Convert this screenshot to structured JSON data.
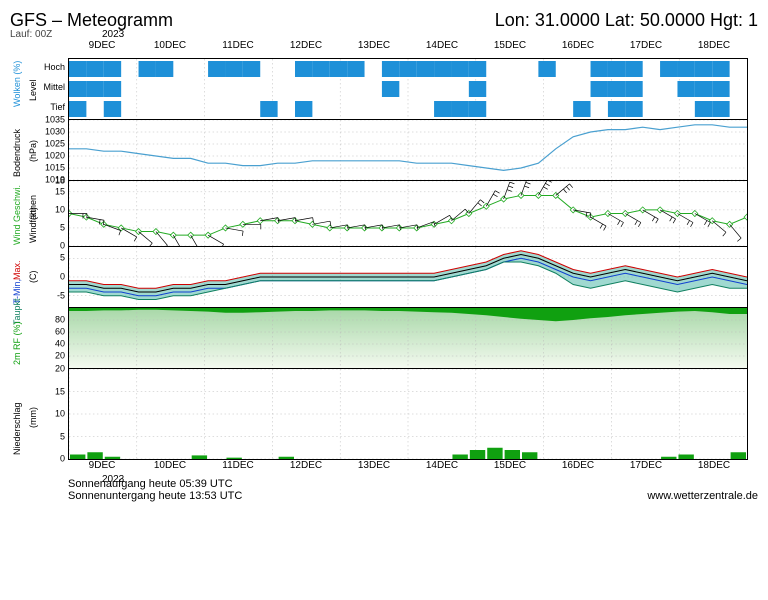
{
  "header": {
    "title": "GFS – Meteogramm",
    "loc": "Lon: 31.0000 Lat: 50.0000 Hgt: 1",
    "run": "Lauf: 00Z"
  },
  "time": {
    "year_top": "2023",
    "labels": [
      "9DEC",
      "10DEC",
      "11DEC",
      "12DEC",
      "13DEC",
      "14DEC",
      "15DEC",
      "16DEC",
      "17DEC",
      "18DEC"
    ],
    "bottom_year": "2023",
    "n_steps": 40
  },
  "colors": {
    "cloud": "#1e90d8",
    "pressure": "#4aa0d0",
    "wind": "#22aa22",
    "tmax": "#d00000",
    "tmin": "#1040d0",
    "dew": "#108060",
    "rh_fill": "#10a010",
    "rh_grad_top": "#50b050",
    "rh_grad_bot": "#e8f4e0",
    "precip": "#10a010",
    "panel_border": "#000000"
  },
  "clouds": {
    "label": "Wolken (%)",
    "sub": "Level",
    "levels": [
      "Hoch",
      "Mittel",
      "Tief"
    ],
    "height": 60,
    "hoch": [
      1,
      1,
      1,
      0,
      1,
      1,
      0,
      0,
      1,
      1,
      1,
      0,
      0,
      1,
      1,
      1,
      1,
      0,
      1,
      1,
      1,
      1,
      1,
      1,
      0,
      0,
      0,
      1,
      0,
      0,
      1,
      1,
      1,
      0,
      1,
      1,
      1,
      1,
      0,
      1
    ],
    "mittel": [
      1,
      1,
      1,
      0,
      0,
      0,
      0,
      0,
      0,
      0,
      0,
      0,
      0,
      0,
      0,
      0,
      0,
      0,
      1,
      0,
      0,
      0,
      0,
      1,
      0,
      0,
      0,
      0,
      0,
      0,
      1,
      1,
      1,
      0,
      0,
      1,
      1,
      1,
      0,
      1
    ],
    "tief": [
      1,
      0,
      1,
      0,
      0,
      0,
      0,
      0,
      0,
      0,
      0,
      1,
      0,
      1,
      0,
      0,
      0,
      0,
      0,
      0,
      0,
      1,
      1,
      1,
      0,
      0,
      0,
      0,
      0,
      1,
      0,
      1,
      1,
      0,
      0,
      0,
      1,
      1,
      0,
      0
    ]
  },
  "pressure": {
    "label": "Bodendruck",
    "unit": "(hPa)",
    "ylim": [
      1010,
      1035
    ],
    "yticks": [
      1010,
      1015,
      1020,
      1025,
      1030,
      1035
    ],
    "height": 60,
    "values": [
      1023,
      1023,
      1022,
      1022,
      1021,
      1020,
      1019,
      1019,
      1017,
      1017,
      1016,
      1016,
      1017,
      1017,
      1018,
      1018,
      1018,
      1018,
      1018,
      1018,
      1017,
      1017,
      1017,
      1016,
      1015,
      1014,
      1015,
      1017,
      1023,
      1028,
      1030,
      1031,
      1031,
      1032,
      1031,
      1032,
      1033,
      1033,
      1032,
      1032
    ]
  },
  "wind": {
    "label": "Wind Geschwi.",
    "sub": "Windfahnen",
    "unit": "(kt)",
    "ylim": [
      0,
      18
    ],
    "yticks": [
      0,
      5,
      10,
      15,
      18
    ],
    "height": 65,
    "speed": [
      9,
      8,
      6,
      5,
      4,
      4,
      3,
      3,
      3,
      5,
      6,
      7,
      7,
      7,
      6,
      5,
      5,
      5,
      5,
      5,
      5,
      6,
      7,
      9,
      11,
      13,
      14,
      14,
      14,
      10,
      8,
      9,
      9,
      10,
      10,
      9,
      9,
      7,
      6,
      8
    ],
    "dir": [
      270,
      280,
      290,
      300,
      310,
      320,
      330,
      330,
      300,
      280,
      270,
      260,
      260,
      260,
      260,
      260,
      260,
      260,
      260,
      260,
      250,
      240,
      230,
      220,
      210,
      200,
      200,
      210,
      230,
      280,
      300,
      300,
      300,
      300,
      300,
      300,
      300,
      310,
      320,
      320
    ]
  },
  "temp": {
    "labels": {
      "tmin": "T-Min,",
      "tmax": "Max.",
      "dew": "Taupkt"
    },
    "unit": "(C)",
    "ylim": [
      -8,
      8
    ],
    "yticks": [
      -5,
      0,
      5
    ],
    "height": 60,
    "t": [
      -2,
      -2,
      -3,
      -3,
      -4,
      -4,
      -3,
      -3,
      -2,
      -2,
      -1,
      0,
      0,
      0,
      0,
      0,
      0,
      0,
      0,
      0,
      0,
      0,
      1,
      2,
      3,
      5,
      6,
      5,
      3,
      1,
      0,
      1,
      2,
      1,
      0,
      -1,
      0,
      1,
      0,
      -1
    ],
    "tmax": [
      -1,
      -1,
      -2,
      -2,
      -3,
      -3,
      -2,
      -2,
      -1,
      -1,
      0,
      1,
      1,
      1,
      1,
      1,
      1,
      1,
      1,
      1,
      1,
      1,
      2,
      3,
      4,
      6,
      7,
      6,
      4,
      2,
      1,
      2,
      3,
      2,
      1,
      0,
      1,
      2,
      1,
      0
    ],
    "tmin": [
      -3,
      -3,
      -4,
      -4,
      -5,
      -5,
      -4,
      -4,
      -3,
      -3,
      -2,
      -1,
      -1,
      -1,
      -1,
      -1,
      -1,
      -1,
      -1,
      -1,
      -1,
      -1,
      0,
      1,
      2,
      4,
      5,
      4,
      2,
      0,
      -1,
      0,
      1,
      0,
      -1,
      -2,
      -1,
      0,
      -1,
      -2
    ],
    "dew": [
      -4,
      -4,
      -5,
      -5,
      -6,
      -6,
      -5,
      -5,
      -4,
      -3,
      -2,
      -1,
      -1,
      -1,
      -1,
      -1,
      -1,
      -1,
      -1,
      -1,
      -1,
      -1,
      0,
      1,
      2,
      4,
      4,
      3,
      1,
      -2,
      -3,
      -2,
      -1,
      -2,
      -3,
      -4,
      -3,
      -2,
      -3,
      -3
    ]
  },
  "rh": {
    "label": "2m RF (%)",
    "ylim": [
      0,
      100
    ],
    "yticks": [
      20,
      40,
      60,
      80
    ],
    "height": 60,
    "values": [
      95,
      95,
      96,
      96,
      97,
      97,
      96,
      95,
      94,
      92,
      92,
      93,
      94,
      95,
      95,
      96,
      96,
      96,
      95,
      95,
      94,
      93,
      92,
      90,
      88,
      85,
      82,
      80,
      78,
      80,
      83,
      85,
      88,
      90,
      92,
      94,
      95,
      93,
      90,
      90
    ]
  },
  "precip": {
    "label": "Niederschlag",
    "unit": "(mm)",
    "ylim": [
      0,
      20
    ],
    "yticks": [
      0,
      5,
      10,
      15,
      20
    ],
    "height": 90,
    "values": [
      1,
      1.5,
      0.5,
      0,
      0,
      0,
      0,
      0.8,
      0,
      0.3,
      0,
      0,
      0.5,
      0,
      0,
      0,
      0,
      0,
      0,
      0,
      0,
      0,
      1,
      2,
      2.5,
      2,
      1.5,
      0,
      0,
      0,
      0,
      0,
      0,
      0,
      0.5,
      1,
      0,
      0,
      1.5,
      0.5
    ]
  },
  "footer": {
    "sunrise": "Sonnenaufgang heute 05:39 UTC",
    "sunset": "Sonnenuntergang heute 13:53 UTC",
    "credit": "www.wetterzentrale.de"
  }
}
